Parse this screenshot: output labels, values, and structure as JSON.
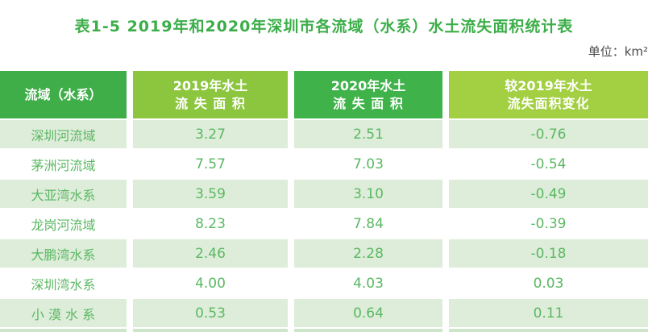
{
  "title": "表1-5 2019年和2020年深圳市各流域（水系）水土流失面积统计表",
  "unit": "单位：km²",
  "colors": {
    "title_green": "#3BAE49",
    "unit_gray": "#4A4A4A",
    "header_col1": "#3FAE49",
    "header_col2": "#8CC63F",
    "header_col3": "#3FB24A",
    "header_col4": "#A3CF42",
    "row_light_green": "#DDEDD9",
    "row_text_green": "#5BB863",
    "cutoff_green": "#CEE5CA"
  },
  "table": {
    "headers": [
      {
        "line1": "流域（水系）",
        "line2": ""
      },
      {
        "line1": "2019年水土",
        "line2": "流 失 面 积"
      },
      {
        "line1": "2020年水土",
        "line2": "流 失 面 积"
      },
      {
        "line1": "较2019年水土",
        "line2": "流失面积变化"
      }
    ],
    "rows": [
      {
        "basin": "深圳河流域",
        "y2019": "3.27",
        "y2020": "2.51",
        "change": "-0.76"
      },
      {
        "basin": "茅洲河流域",
        "y2019": "7.57",
        "y2020": "7.03",
        "change": "-0.54"
      },
      {
        "basin": "大亚湾水系",
        "y2019": "3.59",
        "y2020": "3.10",
        "change": "-0.49"
      },
      {
        "basin": "龙岗河流域",
        "y2019": "8.23",
        "y2020": "7.84",
        "change": "-0.39"
      },
      {
        "basin": "大鹏湾水系",
        "y2019": "2.46",
        "y2020": "2.28",
        "change": "-0.18"
      },
      {
        "basin": "深圳湾水系",
        "y2019": "4.00",
        "y2020": "4.03",
        "change": "0.03"
      },
      {
        "basin": "小 漠 水 系",
        "y2019": "0.53",
        "y2020": "0.64",
        "change": "0.11"
      }
    ]
  }
}
